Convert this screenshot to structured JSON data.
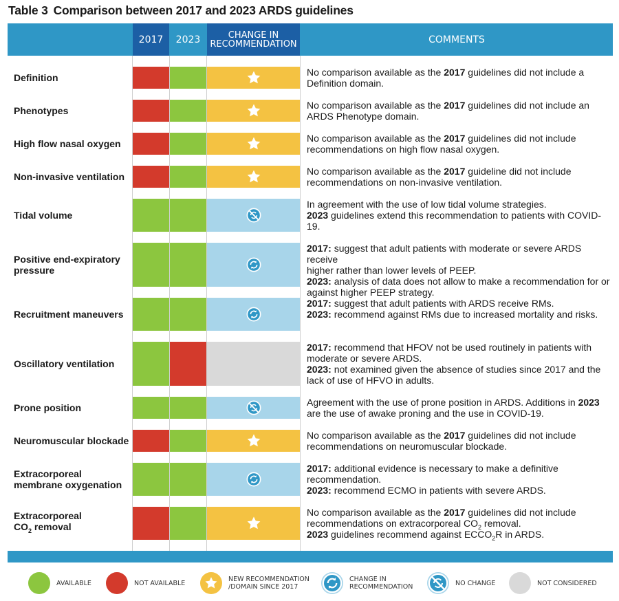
{
  "title": {
    "number": "Table 3",
    "text": "Comparison between 2017 and 2023 ARDS guidelines"
  },
  "headers": {
    "y2017": "2017",
    "y2023": "2023",
    "change_line1": "CHANGE IN",
    "change_line2": "RECOMMENDATION",
    "comments": "COMMENTS"
  },
  "colors": {
    "available": "#8cc63f",
    "not_available": "#d33a2c",
    "new": "#f4c242",
    "change": "#a8d5ea",
    "no_change": "#a8d5ea",
    "not_considered": "#d9d9d9",
    "header": "#2f97c6",
    "header_dark": "#1c5fa5"
  },
  "rows": [
    {
      "label": "Definition",
      "y2017": "not_available",
      "y2023": "available",
      "change": "new",
      "icon": "star-icon",
      "lines": [
        {
          "parts": [
            {
              "t": "No comparison available as the "
            },
            {
              "t": "2017",
              "b": true
            },
            {
              "t": " guidelines did not include a"
            }
          ]
        },
        {
          "parts": [
            {
              "t": "Definition domain."
            }
          ]
        }
      ]
    },
    {
      "label": "Phenotypes",
      "y2017": "not_available",
      "y2023": "available",
      "change": "new",
      "icon": "star-icon",
      "lines": [
        {
          "parts": [
            {
              "t": "No comparison available as the "
            },
            {
              "t": "2017",
              "b": true
            },
            {
              "t": " guidelines did not include an"
            }
          ]
        },
        {
          "parts": [
            {
              "t": "ARDS Phenotype domain."
            }
          ]
        }
      ]
    },
    {
      "label": "High flow nasal oxygen",
      "y2017": "not_available",
      "y2023": "available",
      "change": "new",
      "icon": "star-icon",
      "lines": [
        {
          "parts": [
            {
              "t": "No comparison available as the "
            },
            {
              "t": "2017",
              "b": true
            },
            {
              "t": " guidelines did not include"
            }
          ]
        },
        {
          "parts": [
            {
              "t": "recommendations on high flow nasal oxygen."
            }
          ]
        }
      ]
    },
    {
      "label": "Non-invasive ventilation",
      "y2017": "not_available",
      "y2023": "available",
      "change": "new",
      "icon": "star-icon",
      "lines": [
        {
          "parts": [
            {
              "t": "No comparison available as the "
            },
            {
              "t": "2017",
              "b": true
            },
            {
              "t": " guideline did not include"
            }
          ]
        },
        {
          "parts": [
            {
              "t": "recommendations on non-invasive ventilation."
            }
          ]
        }
      ]
    },
    {
      "label": "Tidal volume",
      "y2017": "available",
      "y2023": "available",
      "change": "no_change",
      "icon": "no-change-icon",
      "lines": [
        {
          "parts": [
            {
              "t": "In agreement with the use of low tidal volume strategies."
            }
          ]
        },
        {
          "parts": [
            {
              "t": "2023",
              "b": true
            },
            {
              "t": " guidelines extend this recommendation to patients with COVID-19."
            }
          ]
        }
      ]
    },
    {
      "label": "Positive end-expiratory pressure",
      "y2017": "available",
      "y2023": "available",
      "change": "change",
      "icon": "change-icon",
      "lines": [
        {
          "parts": [
            {
              "t": "2017:",
              "b": true
            },
            {
              "t": " suggest that adult patients with moderate or severe ARDS receive"
            }
          ]
        },
        {
          "parts": [
            {
              "t": "higher rather than lower levels of PEEP."
            }
          ]
        },
        {
          "parts": [
            {
              "t": "2023:",
              "b": true
            },
            {
              "t": " analysis of data does not allow to make a recommendation for or"
            }
          ]
        },
        {
          "parts": [
            {
              "t": "against higher PEEP strategy."
            }
          ]
        }
      ]
    },
    {
      "label": "Recruitment maneuvers",
      "y2017": "available",
      "y2023": "available",
      "change": "change",
      "icon": "change-icon",
      "lines": [
        {
          "parts": [
            {
              "t": "2017:",
              "b": true
            },
            {
              "t": " suggest that adult patients with ARDS receive RMs."
            }
          ]
        },
        {
          "parts": [
            {
              "t": "2023:",
              "b": true
            },
            {
              "t": " recommend against RMs due to increased mortality and risks."
            }
          ]
        }
      ]
    },
    {
      "label": "Oscillatory ventilation",
      "y2017": "available",
      "y2023": "not_available",
      "change": "not_considered",
      "icon": "",
      "lines": [
        {
          "parts": [
            {
              "t": "2017:",
              "b": true
            },
            {
              "t": " recommend that HFOV not be used routinely in patients with"
            }
          ]
        },
        {
          "parts": [
            {
              "t": "moderate or severe ARDS."
            }
          ]
        },
        {
          "parts": [
            {
              "t": "2023:",
              "b": true
            },
            {
              "t": " not examined given the absence of studies since 2017 and the"
            }
          ]
        },
        {
          "parts": [
            {
              "t": "lack of use of HFVO in adults."
            }
          ]
        }
      ]
    },
    {
      "label": "Prone position",
      "y2017": "available",
      "y2023": "available",
      "change": "no_change",
      "icon": "no-change-icon",
      "lines": [
        {
          "parts": [
            {
              "t": "Agreement with the use of prone position in ARDS. Additions in "
            },
            {
              "t": "2023",
              "b": true
            }
          ]
        },
        {
          "parts": [
            {
              "t": "are the use of awake proning and the use in COVID-19."
            }
          ]
        }
      ]
    },
    {
      "label": "Neuromuscular blockade",
      "y2017": "not_available",
      "y2023": "available",
      "change": "new",
      "icon": "star-icon",
      "lines": [
        {
          "parts": [
            {
              "t": "No comparison available as the "
            },
            {
              "t": "2017",
              "b": true
            },
            {
              "t": " guidelines did not include"
            }
          ]
        },
        {
          "parts": [
            {
              "t": "recommendations on neuromuscular blockade."
            }
          ]
        }
      ]
    },
    {
      "label": "Extracorporeal membrane oxygenation",
      "y2017": "available",
      "y2023": "available",
      "change": "change",
      "icon": "change-icon",
      "lines": [
        {
          "parts": [
            {
              "t": "2017:",
              "b": true
            },
            {
              "t": " additional evidence is necessary to make a definitive"
            }
          ]
        },
        {
          "parts": [
            {
              "t": "recommendation."
            }
          ]
        },
        {
          "parts": [
            {
              "t": "2023:",
              "b": true
            },
            {
              "t": " recommend ECMO in patients with severe ARDS."
            }
          ]
        }
      ]
    },
    {
      "label": "Extracorporeal CO2 removal",
      "y2017": "not_available",
      "y2023": "available",
      "change": "new",
      "icon": "star-icon",
      "lines": [
        {
          "parts": [
            {
              "t": "No comparison available as the "
            },
            {
              "t": "2017",
              "b": true
            },
            {
              "t": " guidelines did not include"
            }
          ]
        },
        {
          "parts": [
            {
              "t": "recommendations on extracorporeal CO"
            },
            {
              "t": "2",
              "sub": true
            },
            {
              "t": " removal."
            }
          ]
        },
        {
          "parts": [
            {
              "t": "2023",
              "b": true
            },
            {
              "t": " guidelines recommend against ECCO"
            },
            {
              "t": "2",
              "sub": true
            },
            {
              "t": "R in ARDS."
            }
          ]
        }
      ]
    }
  ],
  "legend": [
    {
      "key": "available",
      "text1": "AVAILABLE",
      "text2": "",
      "icon": ""
    },
    {
      "key": "not_available",
      "text1": "NOT AVAILABLE",
      "text2": "",
      "icon": ""
    },
    {
      "key": "new",
      "text1": "NEW RECOMMENDATION",
      "text2": "/DOMAIN SINCE 2017",
      "icon": "star-icon"
    },
    {
      "key": "change",
      "text1": "CHANGE IN",
      "text2": "RECOMMENDATION",
      "icon": "change-icon"
    },
    {
      "key": "no_change",
      "text1": "NO CHANGE",
      "text2": "",
      "icon": "no-change-icon"
    },
    {
      "key": "not_considered",
      "text1": "NOT CONSIDERED",
      "text2": "",
      "icon": ""
    }
  ]
}
